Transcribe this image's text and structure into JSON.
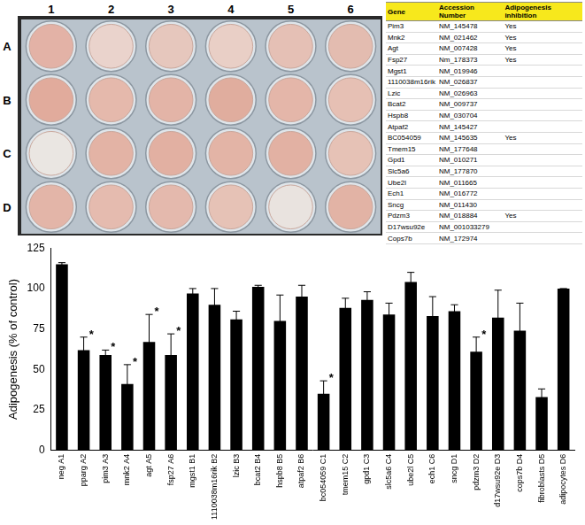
{
  "plate": {
    "columns": [
      "1",
      "2",
      "3",
      "4",
      "5",
      "6"
    ],
    "rows": [
      "A",
      "B",
      "C",
      "D"
    ]
  },
  "table": {
    "header": [
      "Gene",
      "Accession Number",
      "Adipogenesis inhibition"
    ],
    "rows": [
      [
        "Pim3",
        "NM_145478",
        "Yes"
      ],
      [
        "Mnk2",
        "NM_021462",
        "Yes"
      ],
      [
        "Agt",
        "NM_007428",
        "Yes"
      ],
      [
        "Fsp27",
        "Nm_178373",
        "Yes"
      ],
      [
        "Mgst1",
        "NM_019946",
        null
      ],
      [
        "1110038m16rik",
        "NM_026837",
        null
      ],
      [
        "Lzic",
        "NM_026963",
        null
      ],
      [
        "Bcat2",
        "NM_009737",
        null
      ],
      [
        "Hspb8",
        "NM_030704",
        null
      ],
      [
        "Atpaf2",
        "NM_145427",
        null
      ],
      [
        "BC054059",
        "NM_145635",
        "Yes"
      ],
      [
        "Tmem15",
        "NM_177648",
        null
      ],
      [
        "Gpd1",
        "NM_010271",
        null
      ],
      [
        "Slc5a6",
        "NM_177870",
        null
      ],
      [
        "Ube2l",
        "NM_011665",
        null
      ],
      [
        "Ech1",
        "NM_016772",
        null
      ],
      [
        "Sncg",
        "NM_011430",
        null
      ],
      [
        "Pdzm3",
        "NM_018884",
        "Yes"
      ],
      [
        "D17wsu92e",
        "NM_001033279",
        null
      ],
      [
        "Cops7b",
        "NM_172974",
        null
      ]
    ]
  },
  "chart_data": {
    "type": "bar",
    "categories": [
      "neg A1",
      "pparg A2",
      "pim3 A3",
      "mnk2 A4",
      "agt A5",
      "fsp27 A6",
      "mgst1 B1",
      "1110038m16rik B2",
      "lzic B3",
      "bcat2 B4",
      "hspb8 B5",
      "atpaf2 B6",
      "bc054059 C1",
      "tmem15 C2",
      "gpd1 C3",
      "slc5a6 C4",
      "ube2l C5",
      "ech1 C6",
      "sncg D1",
      "pdzm3 D2",
      "d17wsu92e D3",
      "cops7b D4",
      "fibroblasts D5",
      "adipocytes D6"
    ],
    "values": [
      115,
      62,
      59,
      41,
      67,
      59,
      97,
      90,
      81,
      101,
      80,
      95,
      35,
      88,
      93,
      84,
      104,
      83,
      86,
      61,
      82,
      74,
      33,
      100
    ],
    "errors": [
      1,
      8,
      3,
      12,
      17,
      13,
      3,
      10,
      5,
      1,
      16,
      7,
      8,
      6,
      5,
      7,
      6,
      12,
      4,
      9,
      17,
      17,
      5,
      0
    ],
    "significance": [
      null,
      "*",
      "*",
      "*",
      "*",
      "*",
      null,
      null,
      null,
      null,
      null,
      null,
      "*",
      null,
      null,
      null,
      null,
      null,
      null,
      "*",
      null,
      null,
      null,
      null
    ],
    "color": "#000000",
    "ylabel": "Adipogenesis (% of control)",
    "ylim": [
      0,
      125
    ],
    "yticks": [
      0,
      25,
      50,
      75,
      100,
      125
    ],
    "grid": false
  }
}
